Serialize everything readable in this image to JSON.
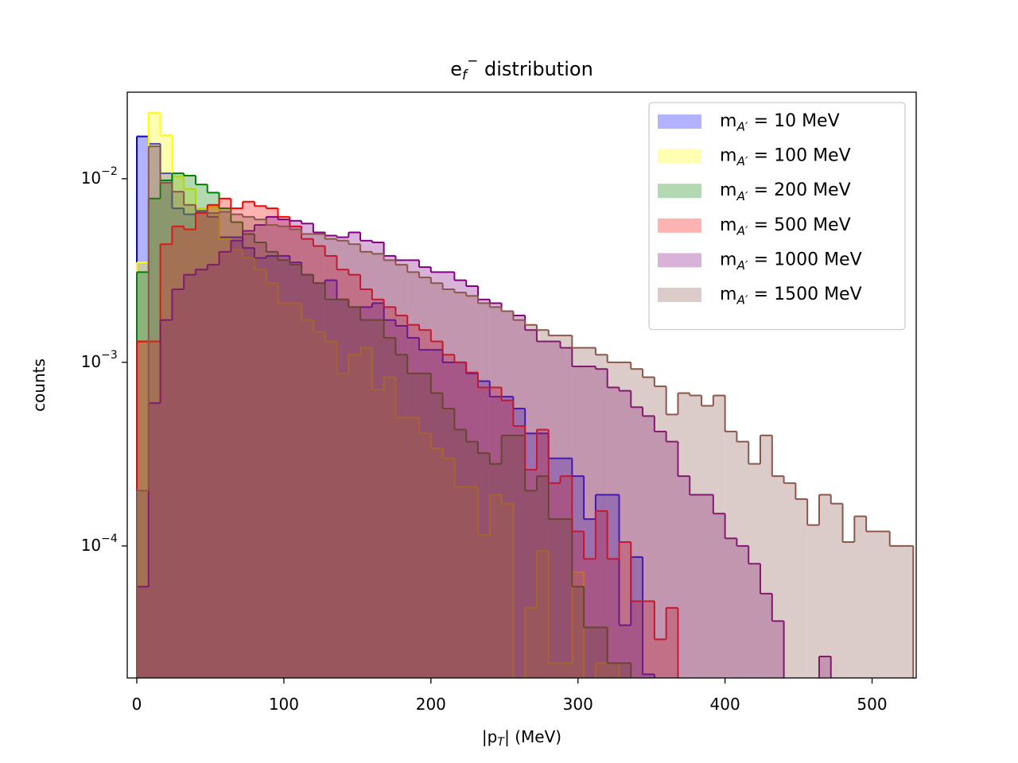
{
  "chart_data": {
    "type": "histogram",
    "title": "e_f^− distribution",
    "xlabel": "|p_T| (MeV)",
    "ylabel": "counts",
    "log_y": true,
    "legend": "upper right",
    "fill_alpha": 0.3,
    "xlim": [
      -6.5,
      530
    ],
    "ylim": [
      1.91e-05,
      0.0296
    ],
    "xticks": [
      0,
      100,
      200,
      300,
      400,
      500
    ],
    "yticks": [
      {
        "value": 0.01,
        "label": "10^−2"
      },
      {
        "value": 0.001,
        "label": "10^−3"
      },
      {
        "value": 0.0001,
        "label": "10^−4"
      }
    ],
    "bins": [
      0,
      8,
      16,
      24,
      32,
      40,
      48,
      56,
      64,
      72,
      80,
      88,
      96,
      104,
      112,
      120,
      128,
      136,
      144,
      152,
      160,
      168,
      176,
      184,
      192,
      200,
      208,
      216,
      224,
      232,
      240,
      248,
      256,
      264,
      272,
      280,
      288,
      296,
      304,
      312,
      320,
      328,
      336,
      344,
      352,
      360,
      368,
      376,
      384,
      392,
      400,
      408,
      416,
      424,
      432,
      440,
      448,
      456,
      464,
      472,
      480,
      488,
      496,
      504,
      512,
      520,
      528
    ],
    "series": [
      {
        "name": "m_A′ = 10 MeV",
        "color": "blue",
        "values": [
          0.017,
          0.0155,
          0.0107,
          0.0069,
          0.0064,
          0.0066,
          0.0062,
          0.0048,
          0.0048,
          0.0042,
          0.0037,
          0.0038,
          0.0038,
          0.0035,
          0.003,
          0.0027,
          0.0028,
          0.0022,
          0.002,
          0.002,
          0.0021,
          0.0017,
          0.00158,
          0.00136,
          0.00117,
          0.00117,
          0.001,
          0.001,
          0.00087,
          0.00079,
          0.00065,
          0.00065,
          0.00056,
          0.00041,
          0.00041,
          0.0003,
          0.0003,
          0.00024,
          0.00014,
          0.00019,
          0.00019,
          3.7e-05,
          8.7e-05,
          2e-05,
          0,
          0,
          0,
          0,
          0,
          0,
          0,
          0,
          0,
          0,
          0,
          0,
          0,
          0,
          0,
          0,
          0,
          0,
          0,
          0,
          0,
          0
        ]
      },
      {
        "name": "m_A′ = 100 MeV",
        "color": "yellow",
        "values": [
          0.0035,
          0.0229,
          0.0173,
          0.0103,
          0.0088,
          0.0069,
          0.007,
          0.0047,
          0.0041,
          0.0037,
          0.0032,
          0.0027,
          0.0021,
          0.0021,
          0.0017,
          0.00146,
          0.0013,
          0.00087,
          0.0011,
          0.0012,
          0.00071,
          0.00083,
          0.0005,
          0.0005,
          0.00041,
          0.00034,
          0.0003,
          0.00021,
          0.00021,
          0.000115,
          0.00019,
          0.00017,
          0,
          4.6e-05,
          9.4e-05,
          2.3e-05,
          2.3e-05,
          7.2e-05,
          0,
          2.3e-05,
          2.3e-05,
          0,
          0,
          0,
          0,
          0,
          0,
          0,
          0,
          0,
          0,
          0,
          0,
          0,
          0,
          0,
          0,
          0,
          0,
          0,
          0,
          0,
          0,
          0,
          0,
          0
        ]
      },
      {
        "name": "m_A′ = 200 MeV",
        "color": "green",
        "values": [
          0.0031,
          0.0078,
          0.0098,
          0.0107,
          0.0104,
          0.0093,
          0.0084,
          0.0069,
          0.0058,
          0.005,
          0.0045,
          0.004,
          0.0036,
          0.0034,
          0.003,
          0.0027,
          0.0022,
          0.0022,
          0.002,
          0.0017,
          0.0017,
          0.00136,
          0.0011,
          0.00087,
          0.00087,
          0.00068,
          0.00056,
          0.00043,
          0.00037,
          0.00032,
          0.00028,
          0.0004,
          0.0004,
          0.0002,
          0.00024,
          0.00014,
          0.00014,
          6e-05,
          3.6e-05,
          3.6e-05,
          2.3e-05,
          2.3e-05,
          0,
          0,
          0,
          0,
          0,
          0,
          0,
          0,
          0,
          0,
          0,
          0,
          0,
          0,
          0,
          0,
          0,
          0,
          0,
          0,
          0,
          0,
          0,
          0
        ]
      },
      {
        "name": "m_A′ = 500 MeV",
        "color": "red",
        "values": [
          0.0013,
          0.0013,
          0.0044,
          0.0055,
          0.0053,
          0.0065,
          0.0072,
          0.0078,
          0.0069,
          0.0075,
          0.0071,
          0.0069,
          0.0062,
          0.0055,
          0.0047,
          0.0043,
          0.0038,
          0.0032,
          0.003,
          0.0025,
          0.0022,
          0.002,
          0.0018,
          0.0016,
          0.0015,
          0.0013,
          0.0011,
          0.001,
          0.00088,
          0.00073,
          0.00073,
          0.00062,
          0.00045,
          0.00026,
          0.00043,
          0.00022,
          0.00024,
          0.00012,
          8.5e-05,
          0.000155,
          8.5e-05,
          0.000105,
          5e-05,
          5e-05,
          3.1e-05,
          4.6e-05,
          0,
          0,
          0,
          0,
          0,
          0,
          0,
          0,
          0,
          0,
          0,
          0,
          0,
          0,
          0,
          0,
          0,
          0,
          0,
          0
        ]
      },
      {
        "name": "m_A′ = 1000 MeV",
        "color": "purple",
        "values": [
          6e-05,
          0.0006,
          0.0017,
          0.0025,
          0.003,
          0.0032,
          0.0034,
          0.004,
          0.0046,
          0.0052,
          0.0056,
          0.0062,
          0.006,
          0.0059,
          0.0057,
          0.0051,
          0.0049,
          0.0048,
          0.0051,
          0.0046,
          0.0045,
          0.0038,
          0.0036,
          0.0036,
          0.0033,
          0.0031,
          0.0031,
          0.0028,
          0.0026,
          0.0022,
          0.0021,
          0.0019,
          0.0018,
          0.0015,
          0.0013,
          0.0013,
          0.0012,
          0.00095,
          0.00095,
          0.00092,
          0.00073,
          0.0007,
          0.00057,
          0.00051,
          0.00042,
          0.00037,
          0.00024,
          0.00019,
          0.00019,
          0.00015,
          0.00011,
          0.0001,
          8e-05,
          5.5e-05,
          3.9e-05,
          0,
          0,
          0,
          2.5e-05,
          0,
          0,
          0,
          0,
          0,
          0,
          0
        ]
      },
      {
        "name": "m_A′ = 1500 MeV",
        "color": "#8c564b",
        "values": [
          0.0002,
          0.015,
          0.0095,
          0.0085,
          0.0072,
          0.0067,
          0.0065,
          0.0066,
          0.0064,
          0.0062,
          0.006,
          0.0056,
          0.0055,
          0.0053,
          0.005,
          0.005,
          0.0047,
          0.0046,
          0.0044,
          0.004,
          0.0039,
          0.0036,
          0.0034,
          0.0031,
          0.0029,
          0.0027,
          0.0025,
          0.0024,
          0.0023,
          0.0021,
          0.002,
          0.0019,
          0.0017,
          0.0016,
          0.0015,
          0.0014,
          0.0014,
          0.0012,
          0.0012,
          0.0011,
          0.001,
          0.001,
          0.00092,
          0.00083,
          0.00074,
          0.00052,
          0.00068,
          0.00066,
          0.00058,
          0.00066,
          0.00042,
          0.00037,
          0.00028,
          0.0004,
          0.00024,
          0.00022,
          0.00018,
          0.00013,
          0.00019,
          0.00017,
          0.000105,
          0.000145,
          0.00012,
          0.00012,
          0.0001,
          0.0001
        ]
      }
    ]
  }
}
